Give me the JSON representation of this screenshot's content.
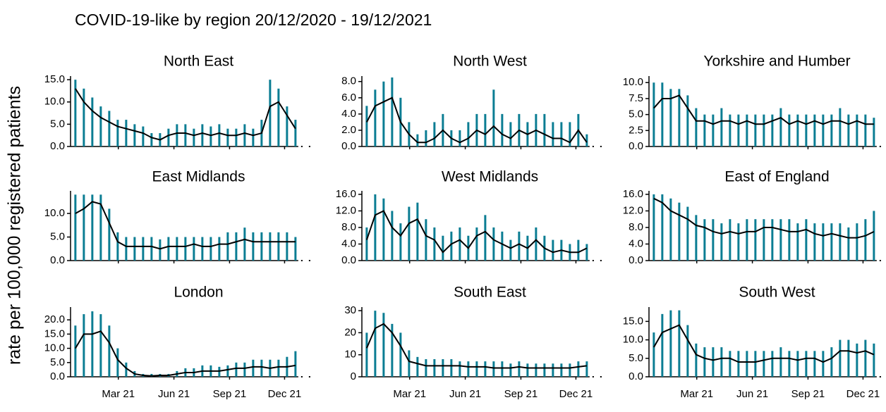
{
  "title": "COVID-19-like by region 20/12/2020 - 19/12/2021",
  "y_label": "rate per 100,000 registered patients",
  "x": [
    "2020-12-20",
    "2021-01-03",
    "2021-01-17",
    "2021-01-31",
    "2021-02-14",
    "2021-02-28",
    "2021-03-14",
    "2021-03-28",
    "2021-04-11",
    "2021-04-25",
    "2021-05-09",
    "2021-05-23",
    "2021-06-06",
    "2021-06-20",
    "2021-07-04",
    "2021-07-18",
    "2021-08-01",
    "2021-08-15",
    "2021-08-29",
    "2021-09-12",
    "2021-09-26",
    "2021-10-10",
    "2021-10-24",
    "2021-11-07",
    "2021-11-21",
    "2021-12-05",
    "2021-12-19"
  ],
  "xlim": [
    "2020-12-12",
    "2022-01-01"
  ],
  "xticks": [
    {
      "value": "2021-03-01",
      "label": "Mar 21"
    },
    {
      "value": "2021-06-01",
      "label": "Jun 21"
    },
    {
      "value": "2021-09-01",
      "label": "Sep 21"
    },
    {
      "value": "2021-12-01",
      "label": "Dec 21"
    }
  ],
  "chart_data": [
    {
      "type": "bar",
      "title": "North East",
      "ylim": [
        0,
        15.5
      ],
      "yticks": [
        {
          "value": 0,
          "label": "0.0"
        },
        {
          "value": 5,
          "label": "5.0"
        },
        {
          "value": 10,
          "label": "10.0"
        },
        {
          "value": 15,
          "label": "15.0"
        }
      ],
      "series": [
        {
          "type": "bar",
          "color": "#0b7d93",
          "values": [
            15,
            13,
            11,
            9,
            8,
            6,
            6,
            5,
            4.5,
            3,
            3,
            4,
            5,
            5,
            4,
            5,
            4.5,
            5,
            4,
            4,
            5,
            4,
            6,
            15,
            13,
            9,
            6
          ]
        },
        {
          "type": "line",
          "color": "#000000",
          "values": [
            13,
            10,
            8,
            6.5,
            5.5,
            4.5,
            4,
            3.5,
            3,
            2,
            1.5,
            2.5,
            3,
            3,
            2.5,
            3,
            2.5,
            3,
            2.5,
            2.5,
            3,
            2.5,
            3,
            9,
            10,
            7,
            4
          ]
        }
      ]
    },
    {
      "type": "bar",
      "title": "North West",
      "ylim": [
        0,
        8.5
      ],
      "yticks": [
        {
          "value": 0,
          "label": "0.0"
        },
        {
          "value": 2,
          "label": "2.0"
        },
        {
          "value": 4,
          "label": "4.0"
        },
        {
          "value": 6,
          "label": "6.0"
        },
        {
          "value": 8,
          "label": "8.0"
        }
      ],
      "series": [
        {
          "type": "bar",
          "color": "#0b7d93",
          "values": [
            5,
            7,
            8,
            8.5,
            6,
            3,
            1.5,
            2,
            3,
            4,
            2,
            2,
            3,
            4,
            4,
            7,
            4,
            3,
            4,
            3,
            4,
            4,
            3,
            3,
            3,
            4,
            1.5
          ]
        },
        {
          "type": "line",
          "color": "#000000",
          "values": [
            3,
            5,
            5.5,
            6,
            3,
            1.5,
            0.5,
            0.5,
            1,
            2,
            1,
            0.5,
            1,
            2,
            1.5,
            2.5,
            1.5,
            1,
            2,
            1.5,
            2,
            1.5,
            1,
            1,
            0.5,
            2,
            0.5
          ]
        }
      ]
    },
    {
      "type": "bar",
      "title": "Yorkshire and Humber",
      "ylim": [
        0,
        10.8
      ],
      "yticks": [
        {
          "value": 0,
          "label": "0.0"
        },
        {
          "value": 2.5,
          "label": "2.5"
        },
        {
          "value": 5,
          "label": "5.0"
        },
        {
          "value": 7.5,
          "label": "7.5"
        },
        {
          "value": 10,
          "label": "10.0"
        }
      ],
      "series": [
        {
          "type": "bar",
          "color": "#0b7d93",
          "values": [
            10,
            10,
            9,
            9,
            8,
            6,
            5,
            5,
            6,
            5,
            5,
            5,
            5,
            5,
            5,
            6,
            5,
            5,
            5,
            5,
            5,
            5,
            6,
            5,
            5,
            5,
            4.5
          ]
        },
        {
          "type": "line",
          "color": "#000000",
          "values": [
            6,
            7.5,
            7.5,
            8,
            6,
            4,
            4,
            3.5,
            4,
            4,
            3.5,
            4,
            3.5,
            3.5,
            4,
            4.5,
            3.5,
            4,
            3.5,
            4,
            3.5,
            4,
            4,
            3.5,
            4,
            3.5,
            3.5
          ]
        }
      ]
    },
    {
      "type": "bar",
      "title": "East Midlands",
      "ylim": [
        0,
        14.5
      ],
      "yticks": [
        {
          "value": 0,
          "label": "0.0"
        },
        {
          "value": 5,
          "label": "5.0"
        },
        {
          "value": 10,
          "label": "10.0"
        }
      ],
      "series": [
        {
          "type": "bar",
          "color": "#0b7d93",
          "values": [
            14,
            14,
            14,
            14,
            11,
            6,
            5,
            5,
            5,
            5,
            4.5,
            5,
            5,
            5,
            5,
            5,
            5,
            5,
            6,
            6,
            7,
            6,
            6,
            6,
            6,
            6,
            5
          ]
        },
        {
          "type": "line",
          "color": "#000000",
          "values": [
            10,
            11,
            12.5,
            12,
            8,
            4,
            3,
            3,
            3,
            3,
            2.5,
            3,
            3,
            3,
            3.5,
            3,
            3,
            3.5,
            3.5,
            4,
            4.5,
            4,
            4,
            4,
            4,
            4,
            4
          ]
        }
      ]
    },
    {
      "type": "bar",
      "title": "West Midlands",
      "ylim": [
        0,
        16.5
      ],
      "yticks": [
        {
          "value": 0,
          "label": "0.0"
        },
        {
          "value": 4,
          "label": "4.0"
        },
        {
          "value": 8,
          "label": "8.0"
        },
        {
          "value": 12,
          "label": "12.0"
        },
        {
          "value": 16,
          "label": "16.0"
        }
      ],
      "series": [
        {
          "type": "bar",
          "color": "#0b7d93",
          "values": [
            8,
            16,
            15,
            12,
            9,
            13,
            14,
            10,
            8,
            6,
            7,
            8,
            6,
            8,
            11,
            8,
            7,
            5,
            7,
            6,
            8,
            6,
            5,
            5,
            4,
            5,
            4
          ]
        },
        {
          "type": "line",
          "color": "#000000",
          "values": [
            5,
            11,
            12,
            8,
            6,
            9,
            10,
            6,
            5,
            2,
            4,
            5,
            3,
            6,
            7,
            5,
            4,
            3,
            4,
            3,
            5,
            3,
            2,
            2.5,
            2,
            2,
            3
          ]
        }
      ]
    },
    {
      "type": "bar",
      "title": "East of England",
      "ylim": [
        0,
        16.5
      ],
      "yticks": [
        {
          "value": 0,
          "label": "0.0"
        },
        {
          "value": 4,
          "label": "4.0"
        },
        {
          "value": 8,
          "label": "8.0"
        },
        {
          "value": 12,
          "label": "12.0"
        },
        {
          "value": 16,
          "label": "16.0"
        }
      ],
      "series": [
        {
          "type": "bar",
          "color": "#0b7d93",
          "values": [
            16,
            16,
            15,
            14,
            13,
            11,
            10,
            10,
            9,
            10,
            9,
            10,
            10,
            10,
            10,
            10,
            10,
            9,
            10,
            9,
            9,
            9,
            9,
            8,
            9,
            10,
            12
          ]
        },
        {
          "type": "line",
          "color": "#000000",
          "values": [
            15,
            14,
            12,
            11,
            10,
            8.5,
            8,
            7,
            6.5,
            7,
            6.5,
            7,
            7,
            8,
            8,
            7.5,
            7,
            7,
            7.5,
            6.5,
            6,
            6.5,
            6,
            5.5,
            5.5,
            6,
            7
          ]
        }
      ]
    },
    {
      "type": "bar",
      "title": "London",
      "ylim": [
        0,
        24
      ],
      "yticks": [
        {
          "value": 0,
          "label": "0.0"
        },
        {
          "value": 5,
          "label": "5.0"
        },
        {
          "value": 10,
          "label": "10.0"
        },
        {
          "value": 15,
          "label": "15.0"
        },
        {
          "value": 20,
          "label": "20.0"
        }
      ],
      "series": [
        {
          "type": "bar",
          "color": "#0b7d93",
          "values": [
            18,
            22,
            23,
            22,
            18,
            10,
            5,
            2,
            1,
            1,
            1,
            1,
            2,
            3,
            3,
            4,
            4,
            3.5,
            4,
            5,
            5,
            6,
            6,
            6,
            6,
            7,
            9
          ]
        },
        {
          "type": "line",
          "color": "#000000",
          "values": [
            10,
            15,
            15,
            16,
            12,
            6,
            3,
            1,
            0.5,
            0.3,
            0.5,
            0.5,
            1,
            1.5,
            1.5,
            2,
            2,
            2,
            2.5,
            3,
            3,
            3.5,
            3.5,
            3,
            3.5,
            3.5,
            4
          ]
        }
      ]
    },
    {
      "type": "bar",
      "title": "South East",
      "ylim": [
        0,
        31
      ],
      "yticks": [
        0,
        10,
        20,
        30
      ],
      "series": [
        {
          "type": "bar",
          "color": "#0b7d93",
          "values": [
            20,
            30,
            29,
            24,
            20,
            12,
            9,
            8,
            8,
            8,
            8,
            7,
            7,
            7,
            7,
            7,
            7,
            6,
            7,
            6,
            6,
            6,
            6,
            6,
            6,
            7,
            7
          ]
        },
        {
          "type": "line",
          "color": "#000000",
          "values": [
            13,
            22,
            24,
            20,
            14,
            7,
            6,
            5,
            5,
            5,
            5,
            5,
            4.5,
            4.5,
            4.5,
            4,
            4,
            4,
            4.5,
            4,
            4,
            4,
            4,
            4,
            4,
            4.5,
            5
          ]
        }
      ]
    },
    {
      "type": "bar",
      "title": "South West",
      "ylim": [
        0,
        18.5
      ],
      "yticks": [
        {
          "value": 0,
          "label": "0.0"
        },
        {
          "value": 5,
          "label": "5.0"
        },
        {
          "value": 10,
          "label": "10.0"
        },
        {
          "value": 15,
          "label": "15.0"
        }
      ],
      "series": [
        {
          "type": "bar",
          "color": "#0b7d93",
          "values": [
            12,
            17,
            18,
            18,
            14,
            9,
            8,
            8,
            8,
            7,
            7,
            7,
            7,
            7,
            7,
            8,
            7,
            7,
            7,
            7,
            7,
            8,
            10,
            10,
            9,
            10,
            9
          ]
        },
        {
          "type": "line",
          "color": "#000000",
          "values": [
            8,
            12,
            13,
            14,
            10,
            6,
            5,
            4.5,
            5,
            5,
            4,
            4,
            4,
            4.5,
            5,
            5,
            5,
            4.5,
            5,
            5,
            4,
            5,
            7,
            7,
            6.5,
            7,
            6
          ]
        }
      ]
    }
  ]
}
